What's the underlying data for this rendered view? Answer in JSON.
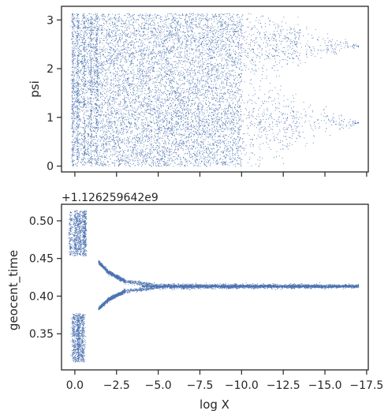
{
  "chart_data": [
    {
      "type": "scatter",
      "panel": "top",
      "ylabel": "psi",
      "xlim": [
        0.8,
        -17.6
      ],
      "ylim": [
        -0.12,
        3.28
      ],
      "yticks": [
        0,
        1,
        2,
        3
      ],
      "x_tick_labels_shown": false,
      "series": [
        {
          "color": "#4c72b0",
          "density_profile": [
            {
              "x": 0.2,
              "psi_min": 0.0,
              "psi_max": 3.14
            },
            {
              "x": -5.0,
              "psi_min": 0.0,
              "psi_max": 3.14
            },
            {
              "x": -10.0,
              "psi_min": 0.05,
              "psi_max": 3.1
            },
            {
              "x": -11.0,
              "psi_min": 0.6,
              "psi_max": 2.8
            },
            {
              "x": -14.0,
              "psi_min": 0.85,
              "psi_max": 2.5
            },
            {
              "x": -17.0,
              "psi_min": 0.88,
              "psi_max": 0.9
            }
          ]
        }
      ]
    },
    {
      "type": "scatter",
      "panel": "bottom",
      "offset_label": "+1.126259642e9",
      "xlabel": "log X",
      "ylabel": "geocent_time",
      "xlim": [
        0.8,
        -17.6
      ],
      "ylim": [
        0.302,
        0.522
      ],
      "yticks": [
        0.35,
        0.4,
        0.45,
        0.5
      ],
      "ytick_labels": [
        "0.35",
        "0.40",
        "0.45",
        "0.50"
      ],
      "xticks": [
        0.0,
        -2.5,
        -5.0,
        -7.5,
        -10.0,
        -12.5,
        -15.0,
        -17.5
      ],
      "xtick_labels": [
        "0.0",
        "−2.5",
        "−5.0",
        "−7.5",
        "−10.0",
        "−12.5",
        "−15.0",
        "−17.5"
      ],
      "series": [
        {
          "color": "#4c72b0",
          "envelope": [
            {
              "x": 0.3,
              "upper": 0.512,
              "lower": 0.314
            },
            {
              "x": -1.0,
              "upper": 0.455,
              "lower": 0.375
            },
            {
              "x": -2.0,
              "upper": 0.432,
              "lower": 0.396
            },
            {
              "x": -3.0,
              "upper": 0.42,
              "lower": 0.407
            },
            {
              "x": -5.0,
              "upper": 0.4145,
              "lower": 0.412
            },
            {
              "x": -17.0,
              "upper": 0.4135,
              "lower": 0.4135
            }
          ]
        }
      ]
    }
  ]
}
